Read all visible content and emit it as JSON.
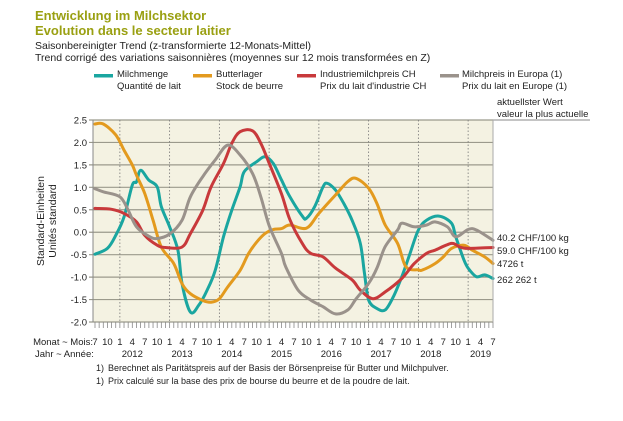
{
  "header": {
    "title_de": "Entwicklung im Milchsektor",
    "title_fr": "Evolution dans le secteur laitier",
    "subtitle_de": "Saisonbereinigter Trend (z-transformierte 12-Monats-Mittel)",
    "subtitle_fr": "Trend corrigé des variations saisonnières (moyennes sur 12 mois transformées en Z)"
  },
  "latest_header": {
    "de": "aktuellster Wert",
    "fr": "valeur la plus actuelle"
  },
  "footnotes": [
    {
      "marker": "1)",
      "text": "Berechnet als Paritätspreis auf der Basis der Börsenpreise für Butter und Milchpulver."
    },
    {
      "marker": "1)",
      "text": "Prix calculé sur la base des prix de bourse du beurre et de la poudre de lait."
    }
  ],
  "chart_data": {
    "type": "line",
    "title": "Entwicklung im Milchsektor / Evolution dans le secteur laitier",
    "ylabel_de": "Standard-Einheiten",
    "ylabel_fr": "Unités standard",
    "xlabel_month": "Monat ~ Mois:",
    "xlabel_year": "Jahr ~ Année:",
    "xlim": [
      "2011-07",
      "2019-07"
    ],
    "ylim": [
      -2.0,
      2.5
    ],
    "y_ticks": [
      "2.5",
      "2.0",
      "1.5",
      "1.0",
      "0.5",
      "0.0",
      "-0.5",
      "-1.0",
      "-1.5",
      "-2.0"
    ],
    "month_tick_labels": [
      "7",
      "10",
      "1",
      "4",
      "7",
      "10",
      "1",
      "4",
      "7",
      "10",
      "1",
      "4",
      "7",
      "10",
      "1",
      "4",
      "7",
      "10",
      "1",
      "4",
      "7",
      "10",
      "1",
      "4",
      "7",
      "10",
      "1",
      "4",
      "7",
      "10",
      "1",
      "4",
      "7"
    ],
    "year_tick_labels": [
      "2012",
      "2013",
      "2014",
      "2015",
      "2016",
      "2017",
      "2018",
      "2019"
    ],
    "grid": {
      "horizontal": "solid",
      "vertical": "dotted at each January"
    },
    "background_color": "#f4f2e2",
    "legend_placement": "top",
    "series": [
      {
        "name_de": "Milchmenge",
        "name_fr": "Quantité de lait",
        "color": "#1aa6a0",
        "latest_value": "262 262 t",
        "points": [
          [
            "2011-07",
            -0.49
          ],
          [
            "2011-10",
            -0.36
          ],
          [
            "2011-12",
            -0.07
          ],
          [
            "2012-02",
            0.34
          ],
          [
            "2012-04",
            1.05
          ],
          [
            "2012-05",
            1.12
          ],
          [
            "2012-06",
            1.38
          ],
          [
            "2012-08",
            1.16
          ],
          [
            "2012-10",
            1.01
          ],
          [
            "2012-11",
            0.57
          ],
          [
            "2013-01",
            0.12
          ],
          [
            "2013-03",
            -0.4
          ],
          [
            "2013-04",
            -1.15
          ],
          [
            "2013-06",
            -1.78
          ],
          [
            "2013-08",
            -1.63
          ],
          [
            "2013-10",
            -1.3
          ],
          [
            "2013-12",
            -0.85
          ],
          [
            "2014-02",
            -0.1
          ],
          [
            "2014-04",
            0.49
          ],
          [
            "2014-06",
            1.01
          ],
          [
            "2014-07",
            1.35
          ],
          [
            "2014-10",
            1.57
          ],
          [
            "2014-12",
            1.68
          ],
          [
            "2015-02",
            1.53
          ],
          [
            "2015-04",
            1.16
          ],
          [
            "2015-06",
            0.79
          ],
          [
            "2015-09",
            0.36
          ],
          [
            "2015-10",
            0.31
          ],
          [
            "2015-12",
            0.57
          ],
          [
            "2016-02",
            1.01
          ],
          [
            "2016-03",
            1.09
          ],
          [
            "2016-05",
            0.94
          ],
          [
            "2016-07",
            0.64
          ],
          [
            "2016-09",
            0.27
          ],
          [
            "2016-11",
            -0.25
          ],
          [
            "2016-12",
            -0.92
          ],
          [
            "2017-01",
            -1.51
          ],
          [
            "2017-03",
            -1.7
          ],
          [
            "2017-05",
            -1.73
          ],
          [
            "2017-07",
            -1.43
          ],
          [
            "2017-09",
            -0.99
          ],
          [
            "2017-11",
            -0.47
          ],
          [
            "2018-01",
            0.05
          ],
          [
            "2018-03",
            0.27
          ],
          [
            "2018-06",
            0.36
          ],
          [
            "2018-09",
            0.2
          ],
          [
            "2018-10",
            -0.1
          ],
          [
            "2018-12",
            -0.62
          ],
          [
            "2019-01",
            -0.8
          ],
          [
            "2019-03",
            -0.99
          ],
          [
            "2019-05",
            -0.95
          ],
          [
            "2019-07",
            -1.03
          ]
        ]
      },
      {
        "name_de": "Butterlager",
        "name_fr": "Stock de beurre",
        "color": "#e39a1e",
        "latest_value": "4726 t",
        "points": [
          [
            "2011-07",
            2.41
          ],
          [
            "2011-09",
            2.41
          ],
          [
            "2011-12",
            2.17
          ],
          [
            "2012-02",
            1.83
          ],
          [
            "2012-04",
            1.5
          ],
          [
            "2012-05",
            1.27
          ],
          [
            "2012-07",
            0.86
          ],
          [
            "2012-09",
            0.27
          ],
          [
            "2012-11",
            -0.33
          ],
          [
            "2013-02",
            -0.7
          ],
          [
            "2013-04",
            -1.15
          ],
          [
            "2013-06",
            -1.37
          ],
          [
            "2013-09",
            -1.52
          ],
          [
            "2013-11",
            -1.56
          ],
          [
            "2014-01",
            -1.48
          ],
          [
            "2014-03",
            -1.22
          ],
          [
            "2014-06",
            -0.85
          ],
          [
            "2014-08",
            -0.48
          ],
          [
            "2014-10",
            -0.22
          ],
          [
            "2014-12",
            -0.03
          ],
          [
            "2015-02",
            0.06
          ],
          [
            "2015-04",
            0.08
          ],
          [
            "2015-06",
            0.16
          ],
          [
            "2015-10",
            0.09
          ],
          [
            "2016-01",
            0.42
          ],
          [
            "2016-05",
            0.83
          ],
          [
            "2016-08",
            1.13
          ],
          [
            "2016-10",
            1.2
          ],
          [
            "2017-01",
            0.98
          ],
          [
            "2017-03",
            0.64
          ],
          [
            "2017-05",
            0.16
          ],
          [
            "2017-08",
            -0.25
          ],
          [
            "2017-10",
            -0.77
          ],
          [
            "2018-01",
            -0.84
          ],
          [
            "2018-02",
            -0.84
          ],
          [
            "2018-05",
            -0.7
          ],
          [
            "2018-07",
            -0.55
          ],
          [
            "2018-09",
            -0.36
          ],
          [
            "2018-12",
            -0.29
          ],
          [
            "2019-02",
            -0.4
          ],
          [
            "2019-05",
            -0.55
          ],
          [
            "2019-07",
            -0.7
          ]
        ]
      },
      {
        "name_de": "Industriemilchpreis CH",
        "name_fr": "Prix du lait d'industrie CH",
        "color": "#c8393b",
        "latest_value": "59.0 CHF/100 kg",
        "points": [
          [
            "2011-07",
            0.53
          ],
          [
            "2011-11",
            0.51
          ],
          [
            "2012-02",
            0.42
          ],
          [
            "2012-05",
            0.23
          ],
          [
            "2012-07",
            -0.07
          ],
          [
            "2012-10",
            -0.29
          ],
          [
            "2012-12",
            -0.34
          ],
          [
            "2013-04",
            -0.33
          ],
          [
            "2013-06",
            -0.03
          ],
          [
            "2013-09",
            0.49
          ],
          [
            "2013-11",
            1.01
          ],
          [
            "2014-02",
            1.53
          ],
          [
            "2014-04",
            1.98
          ],
          [
            "2014-06",
            2.24
          ],
          [
            "2014-09",
            2.26
          ],
          [
            "2014-11",
            1.98
          ],
          [
            "2015-01",
            1.54
          ],
          [
            "2015-04",
            0.85
          ],
          [
            "2015-06",
            0.28
          ],
          [
            "2015-09",
            -0.25
          ],
          [
            "2015-11",
            -0.47
          ],
          [
            "2016-02",
            -0.55
          ],
          [
            "2016-05",
            -0.8
          ],
          [
            "2016-09",
            -1.06
          ],
          [
            "2016-11",
            -1.29
          ],
          [
            "2017-02",
            -1.48
          ],
          [
            "2017-05",
            -1.33
          ],
          [
            "2017-09",
            -1.03
          ],
          [
            "2017-12",
            -0.7
          ],
          [
            "2018-03",
            -0.47
          ],
          [
            "2018-05",
            -0.4
          ],
          [
            "2018-09",
            -0.25
          ],
          [
            "2018-11",
            -0.33
          ],
          [
            "2019-01",
            -0.36
          ],
          [
            "2019-07",
            -0.34
          ]
        ]
      },
      {
        "name_de": "Milchpreis in Europa (1)",
        "name_fr": "Prix du lait en Europe (1)",
        "color": "#9a928b",
        "latest_value": "40.2 CHF/100 kg",
        "points": [
          [
            "2011-07",
            0.97
          ],
          [
            "2011-09",
            0.9
          ],
          [
            "2012-01",
            0.79
          ],
          [
            "2012-03",
            0.49
          ],
          [
            "2012-05",
            0.12
          ],
          [
            "2012-08",
            -0.09
          ],
          [
            "2012-10",
            -0.14
          ],
          [
            "2013-01",
            -0.04
          ],
          [
            "2013-04",
            0.27
          ],
          [
            "2013-06",
            0.79
          ],
          [
            "2013-09",
            1.24
          ],
          [
            "2013-12",
            1.61
          ],
          [
            "2014-03",
            1.94
          ],
          [
            "2014-06",
            1.72
          ],
          [
            "2014-09",
            1.31
          ],
          [
            "2014-11",
            0.79
          ],
          [
            "2015-01",
            0.15
          ],
          [
            "2015-04",
            -0.48
          ],
          [
            "2015-05",
            -0.77
          ],
          [
            "2015-08",
            -1.29
          ],
          [
            "2015-11",
            -1.51
          ],
          [
            "2016-02",
            -1.66
          ],
          [
            "2016-05",
            -1.82
          ],
          [
            "2016-08",
            -1.73
          ],
          [
            "2016-10",
            -1.48
          ],
          [
            "2017-01",
            -1.14
          ],
          [
            "2017-03",
            -0.8
          ],
          [
            "2017-05",
            -0.32
          ],
          [
            "2017-08",
            0.05
          ],
          [
            "2017-09",
            0.2
          ],
          [
            "2017-12",
            0.12
          ],
          [
            "2018-03",
            0.16
          ],
          [
            "2018-05",
            0.23
          ],
          [
            "2018-08",
            0.12
          ],
          [
            "2018-10",
            -0.1
          ],
          [
            "2019-01",
            0.06
          ],
          [
            "2019-03",
            0.05
          ],
          [
            "2019-07",
            -0.18
          ]
        ]
      }
    ]
  }
}
